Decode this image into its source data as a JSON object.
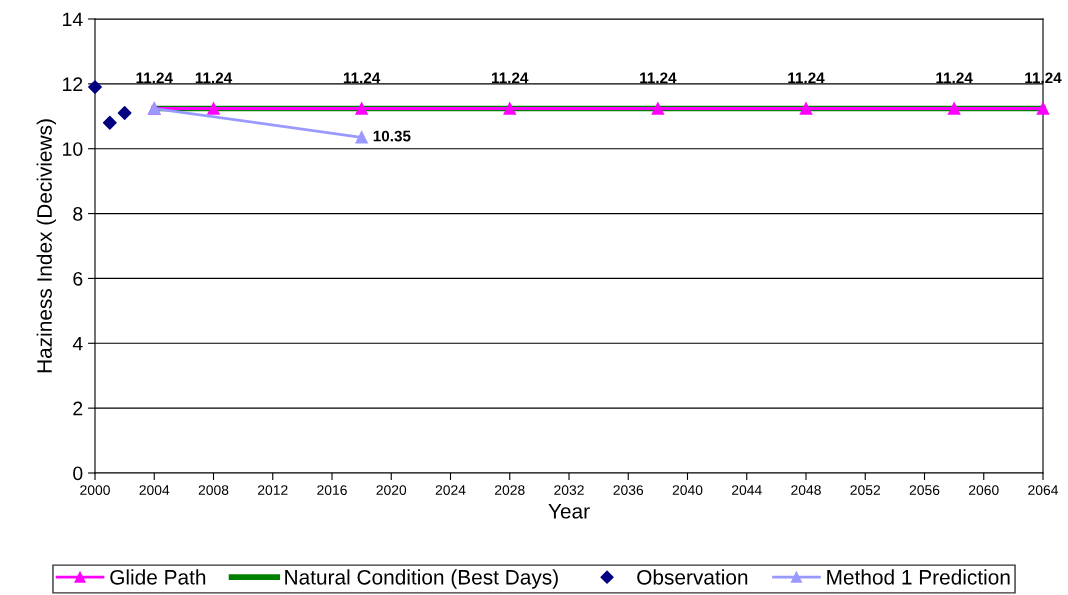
{
  "chart_data": {
    "type": "line",
    "xlabel": "Year",
    "ylabel": "Haziness Index (Deciviews)",
    "xlim": [
      2000,
      2064
    ],
    "xticks": [
      2000,
      2004,
      2008,
      2012,
      2016,
      2020,
      2024,
      2028,
      2032,
      2036,
      2040,
      2044,
      2048,
      2052,
      2056,
      2060,
      2064
    ],
    "ylim": [
      0,
      14
    ],
    "yticks": [
      0,
      2,
      4,
      6,
      8,
      10,
      12,
      14
    ],
    "grid": "y",
    "legend": "bottom",
    "series": [
      {
        "name": "Glide Path",
        "type": "line",
        "color": "#ff00ff",
        "marker": "triangle",
        "x": [
          2004,
          2008,
          2018,
          2028,
          2038,
          2048,
          2058,
          2064
        ],
        "values": [
          11.24,
          11.24,
          11.24,
          11.24,
          11.24,
          11.24,
          11.24,
          11.24
        ],
        "value_labels": [
          "11.24",
          "11.24",
          "11.24",
          "11.24",
          "11.24",
          "11.24",
          "11.24",
          "11.24"
        ]
      },
      {
        "name": "Natural Condition (Best Days)",
        "type": "line",
        "color": "#008000",
        "marker": "none",
        "x": [
          2004,
          2064
        ],
        "values": [
          11.24,
          11.24
        ]
      },
      {
        "name": "Observation",
        "type": "scatter",
        "color": "#000080",
        "marker": "diamond",
        "x": [
          2000,
          2001,
          2002
        ],
        "values": [
          11.9,
          10.8,
          11.1
        ]
      },
      {
        "name": "Method 1 Prediction",
        "type": "line",
        "color": "#9999ff",
        "marker": "triangle",
        "x": [
          2004,
          2018
        ],
        "values": [
          11.24,
          10.35
        ],
        "value_labels": [
          null,
          "10.35"
        ]
      }
    ]
  }
}
